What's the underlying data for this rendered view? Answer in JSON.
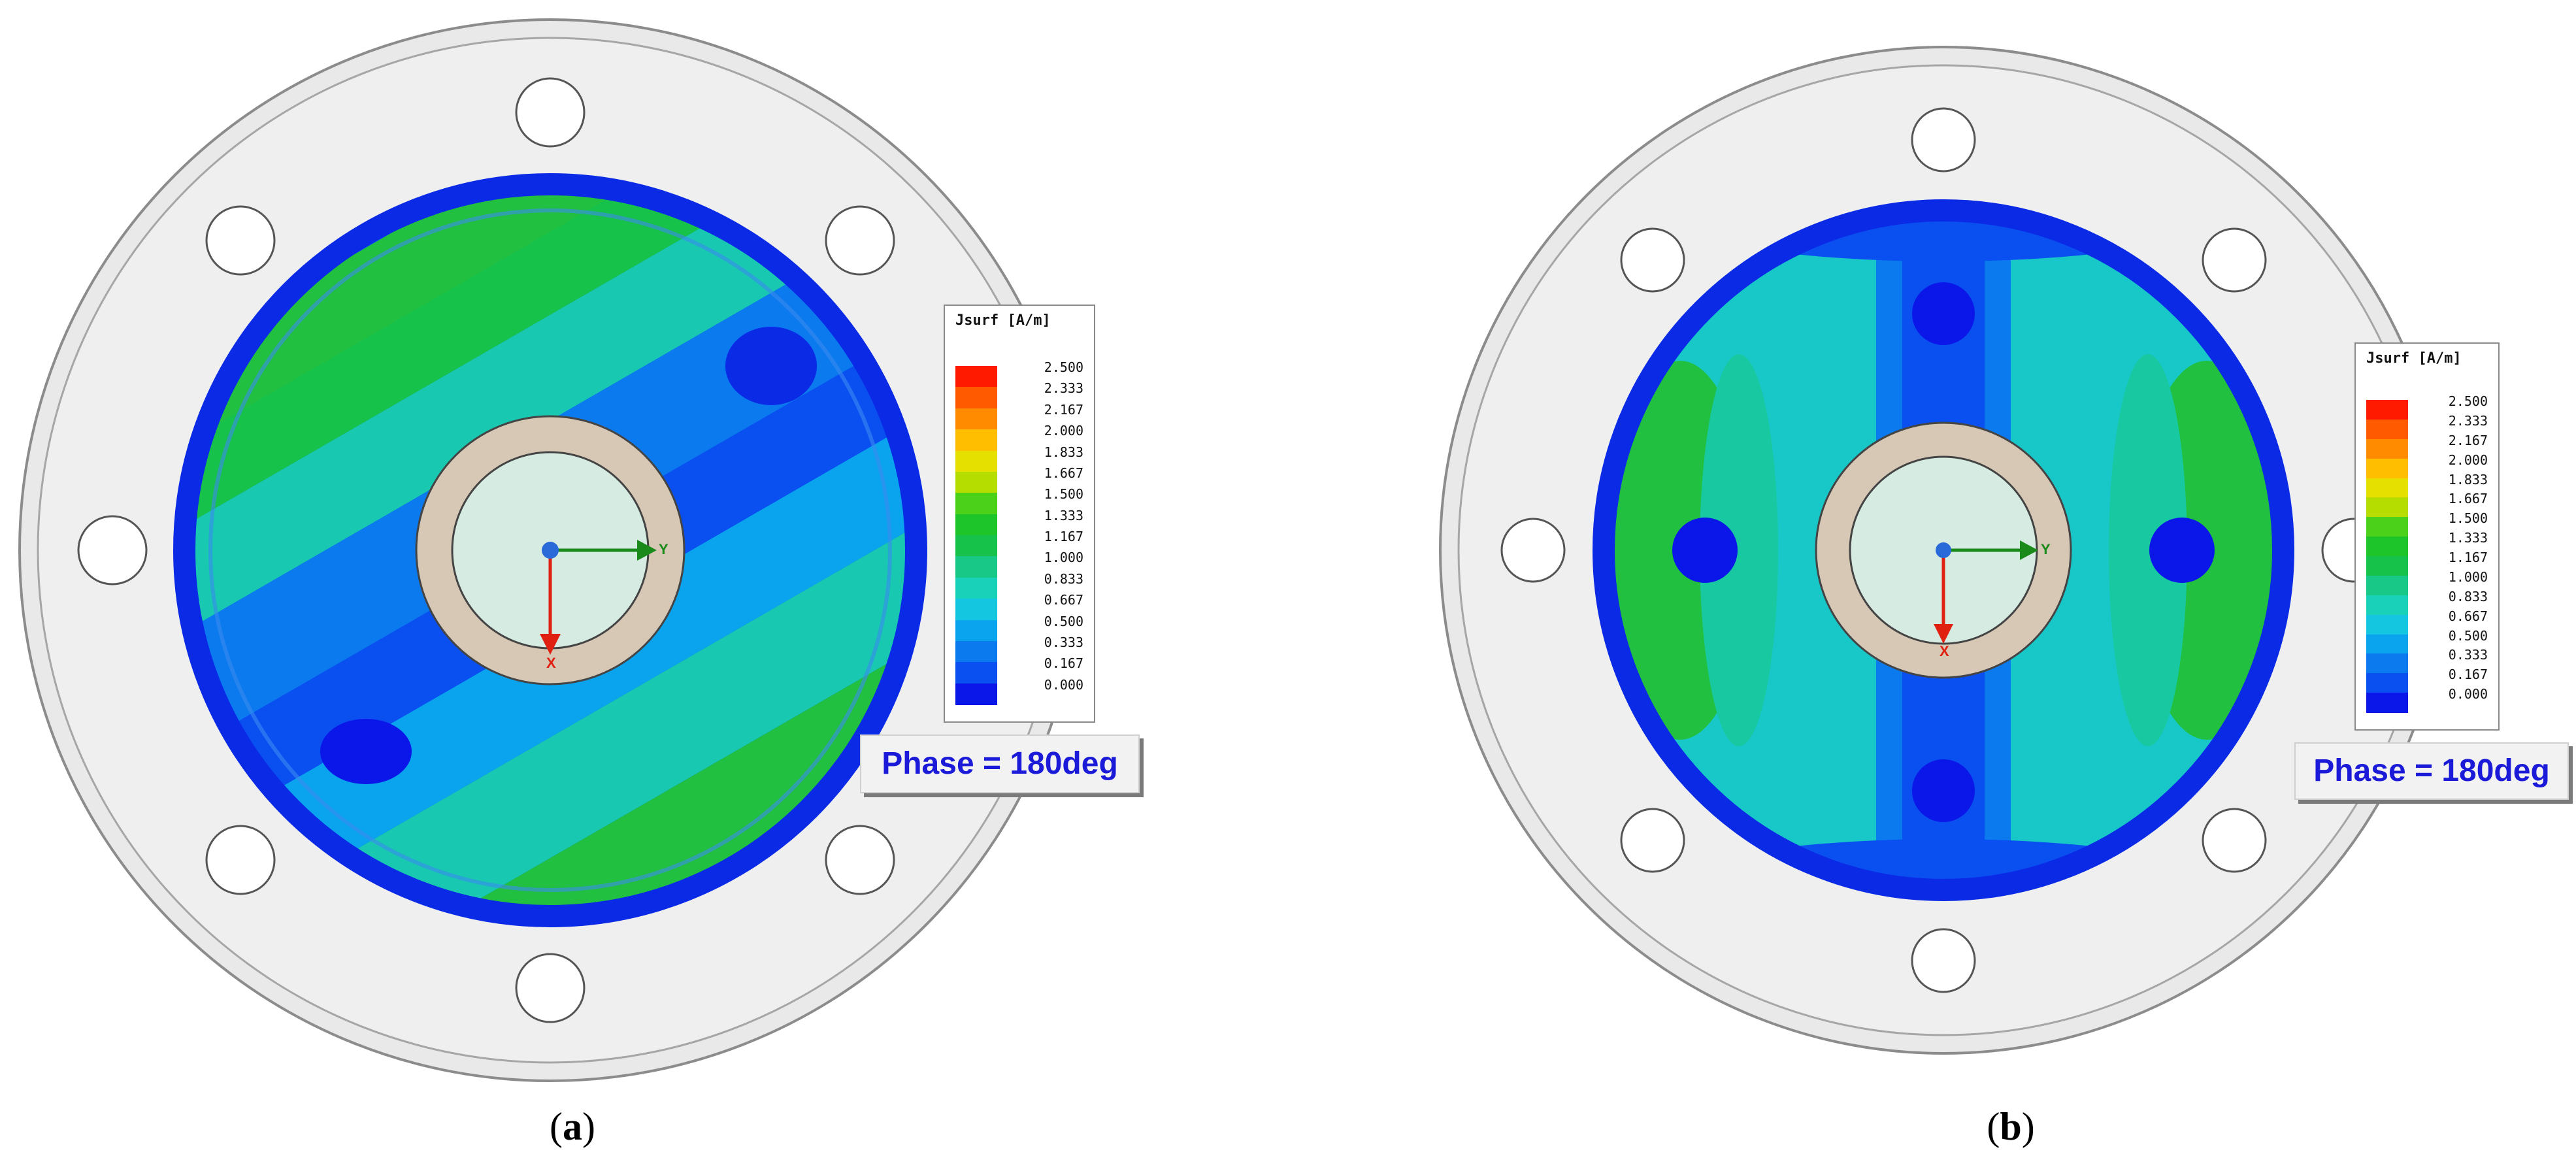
{
  "legend": {
    "title": "Jsurf [A/m]",
    "ticks": [
      "2.500",
      "2.333",
      "2.167",
      "2.000",
      "1.833",
      "1.667",
      "1.500",
      "1.333",
      "1.167",
      "1.000",
      "0.833",
      "0.667",
      "0.500",
      "0.333",
      "0.167",
      "0.000"
    ],
    "colors": [
      "#ff1a00",
      "#ff5a00",
      "#ff8c00",
      "#ffbf00",
      "#e6e000",
      "#b5de00",
      "#4cd11a",
      "#1ec52a",
      "#17c24a",
      "#18c886",
      "#18d1b8",
      "#14c6e0",
      "#0aa4ee",
      "#0b7aee",
      "#0a4ff0",
      "#0a17e8"
    ]
  },
  "phase_label": "Phase = 180deg",
  "axis": {
    "x": "X",
    "y": "Y"
  },
  "panels": [
    {
      "caption_letter": "a"
    },
    {
      "caption_letter": "b"
    }
  ],
  "colors": {
    "flange": "#ececec",
    "flange_edge": "#8c8c8c",
    "inner_ring": "#d7c8b6",
    "inner_core": "#d6ece2",
    "field_dark": "#0a2ae6",
    "field_mid": "#0b7aee",
    "field_cyan": "#18c8c8",
    "field_green": "#22c040",
    "axis_y": "#1a8a1a",
    "axis_x": "#e02010",
    "origin": "#2a6ad8"
  }
}
